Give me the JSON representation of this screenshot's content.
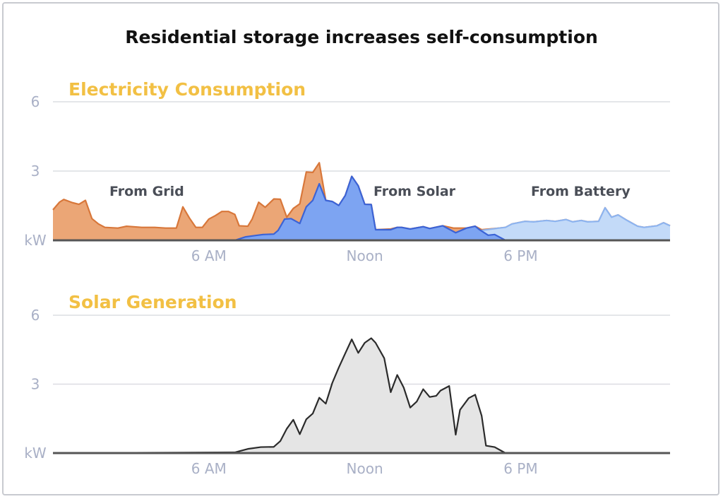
{
  "title": "Residential storage increases self-consumption",
  "colors": {
    "subtitle": "#F2C044",
    "grid_fill": "#EBA676",
    "grid_stroke": "#D8773A",
    "solar_fill": "#7DA4F2",
    "solar_stroke": "#3B63D6",
    "battery_fill": "#C3DAF8",
    "battery_stroke": "#8DB4F0",
    "generation_fill": "#E5E5E5",
    "generation_stroke": "#2B2B2B",
    "axis_text": "#A9B0C6",
    "gridline": "#DCDDE2",
    "baseline": "#555555"
  },
  "chart_data": [
    {
      "type": "area",
      "title": "Electricity Consumption",
      "ylabel": "kW",
      "ylim": [
        0,
        6
      ],
      "yticks": [
        {
          "value": 6,
          "label": "6"
        },
        {
          "value": 3,
          "label": "3"
        },
        {
          "value": 0,
          "label": "kW"
        }
      ],
      "xlim": [
        "00:00",
        "23:45"
      ],
      "xticks": [
        {
          "value": "06:00",
          "label": "6 AM"
        },
        {
          "value": "12:00",
          "label": "Noon"
        },
        {
          "value": "18:00",
          "label": "6 PM"
        }
      ],
      "grid": true,
      "annotations": [
        {
          "text": "From Grid",
          "series": "grid"
        },
        {
          "text": "From Solar",
          "series": "solar"
        },
        {
          "text": "From Battery",
          "series": "battery"
        }
      ],
      "series": [
        {
          "key": "grid",
          "label": "From Grid",
          "x": [
            "00:00",
            "00:15",
            "00:25",
            "00:45",
            "01:00",
            "01:15",
            "01:30",
            "01:45",
            "02:00",
            "02:30",
            "02:50",
            "03:25",
            "03:55",
            "04:20",
            "04:45",
            "05:00",
            "05:15",
            "05:30",
            "05:45",
            "06:00",
            "06:15",
            "06:30",
            "06:45",
            "07:00",
            "07:10",
            "07:30",
            "07:40",
            "07:55",
            "08:10",
            "08:30",
            "08:45",
            "09:00",
            "09:15",
            "09:30",
            "09:45",
            "10:00",
            "10:15",
            "10:30",
            "10:45",
            "11:00",
            "11:15",
            "11:30",
            "11:45",
            "12:00",
            "12:15",
            "12:25",
            "13:00",
            "13:15",
            "13:25",
            "13:45",
            "14:15",
            "14:30",
            "15:00",
            "15:25",
            "15:55",
            "16:15",
            "16:30",
            "17:10",
            "17:25",
            "17:40",
            "18:10",
            "18:30",
            "19:00",
            "19:20",
            "19:45",
            "20:00",
            "20:20",
            "20:35",
            "21:00",
            "21:15",
            "21:30",
            "21:45",
            "22:05",
            "22:30",
            "22:45",
            "23:15",
            "23:30",
            "23:45"
          ],
          "y": [
            1.32,
            1.65,
            1.77,
            1.63,
            1.56,
            1.73,
            0.94,
            0.71,
            0.56,
            0.53,
            0.61,
            0.56,
            0.56,
            0.53,
            0.53,
            1.45,
            0.97,
            0.56,
            0.56,
            0.92,
            1.07,
            1.25,
            1.25,
            1.12,
            0.63,
            0.61,
            0.92,
            1.65,
            1.43,
            1.79,
            1.78,
            1.0,
            1.38,
            1.58,
            2.96,
            2.94,
            3.36,
            1.73,
            1.68,
            1.51,
            1.94,
            2.77,
            2.36,
            1.56,
            1.55,
            0.46,
            0.49,
            0.56,
            0.56,
            0.49,
            0.59,
            0.51,
            0.63,
            0.53,
            0.53,
            0.61,
            0.46,
            0.53,
            0.56,
            0.71,
            0.82,
            0.8,
            0.86,
            0.82,
            0.9,
            0.8,
            0.86,
            0.8,
            0.82,
            1.41,
            1.0,
            1.1,
            0.87,
            0.61,
            0.56,
            0.63,
            0.76,
            0.63
          ]
        },
        {
          "key": "battery",
          "label": "From Battery",
          "x": [
            "16:30",
            "17:10",
            "17:25",
            "17:40",
            "18:10",
            "18:30",
            "19:00",
            "19:20",
            "19:45",
            "20:00",
            "20:20",
            "20:35",
            "21:00",
            "21:15",
            "21:30",
            "21:45",
            "22:05",
            "22:30",
            "22:45",
            "23:15",
            "23:30",
            "23:45"
          ],
          "y": [
            0.43,
            0.53,
            0.56,
            0.71,
            0.82,
            0.8,
            0.86,
            0.82,
            0.9,
            0.8,
            0.86,
            0.8,
            0.82,
            1.41,
            1.0,
            1.1,
            0.87,
            0.61,
            0.56,
            0.63,
            0.76,
            0.63
          ]
        },
        {
          "key": "solar",
          "label": "From Solar",
          "x": [
            "07:00",
            "07:25",
            "07:45",
            "08:05",
            "08:30",
            "08:40",
            "08:55",
            "09:10",
            "09:30",
            "09:45",
            "10:00",
            "10:15",
            "10:30",
            "10:45",
            "11:00",
            "11:15",
            "11:30",
            "11:45",
            "12:00",
            "12:15",
            "12:25",
            "13:00",
            "13:15",
            "13:25",
            "13:45",
            "14:15",
            "14:30",
            "15:00",
            "15:30",
            "15:55",
            "16:15",
            "16:25",
            "16:45",
            "17:00",
            "17:25"
          ],
          "y": [
            0.0,
            0.15,
            0.2,
            0.25,
            0.27,
            0.43,
            0.92,
            0.94,
            0.73,
            1.45,
            1.73,
            2.45,
            1.73,
            1.68,
            1.51,
            1.94,
            2.77,
            2.36,
            1.56,
            1.55,
            0.46,
            0.46,
            0.56,
            0.56,
            0.49,
            0.59,
            0.51,
            0.63,
            0.33,
            0.53,
            0.61,
            0.46,
            0.22,
            0.25,
            0.0
          ]
        }
      ]
    },
    {
      "type": "area",
      "title": "Solar Generation",
      "ylabel": "kW",
      "ylim": [
        0,
        6
      ],
      "yticks": [
        {
          "value": 6,
          "label": "6"
        },
        {
          "value": 3,
          "label": "3"
        },
        {
          "value": 0,
          "label": "kW"
        }
      ],
      "xlim": [
        "00:00",
        "23:45"
      ],
      "xticks": [
        {
          "value": "06:00",
          "label": "6 AM"
        },
        {
          "value": "12:00",
          "label": "Noon"
        },
        {
          "value": "18:00",
          "label": "6 PM"
        }
      ],
      "grid": true,
      "series": [
        {
          "key": "generation",
          "x": [
            "00:00",
            "07:00",
            "07:30",
            "08:00",
            "08:30",
            "08:45",
            "09:00",
            "09:15",
            "09:30",
            "09:45",
            "10:00",
            "10:15",
            "10:30",
            "10:45",
            "11:00",
            "11:15",
            "11:30",
            "11:45",
            "12:00",
            "12:15",
            "12:25",
            "12:45",
            "13:00",
            "13:15",
            "13:30",
            "13:45",
            "14:00",
            "14:15",
            "14:30",
            "14:45",
            "14:55",
            "15:15",
            "15:30",
            "15:40",
            "16:00",
            "16:15",
            "16:30",
            "16:40",
            "17:00",
            "17:20",
            "17:25",
            "23:45"
          ],
          "y": [
            0,
            0.03,
            0.18,
            0.26,
            0.27,
            0.52,
            1.06,
            1.45,
            0.82,
            1.47,
            1.72,
            2.41,
            2.15,
            3.05,
            3.72,
            4.34,
            4.95,
            4.36,
            4.8,
            5.0,
            4.8,
            4.13,
            2.65,
            3.4,
            2.85,
            1.98,
            2.24,
            2.78,
            2.44,
            2.49,
            2.72,
            2.92,
            0.8,
            1.88,
            2.39,
            2.54,
            1.62,
            0.32,
            0.26,
            0.05,
            0,
            0
          ]
        }
      ]
    }
  ]
}
